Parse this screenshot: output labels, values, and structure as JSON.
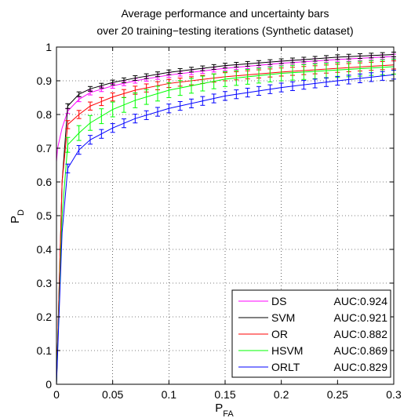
{
  "chart_data": {
    "type": "line",
    "title": "Average performance and uncertainty bars",
    "subtitle": "over 20 training−testing iterations (Synthetic dataset)",
    "xlabel_main": "P",
    "xlabel_sub": "FA",
    "ylabel_main": "P",
    "ylabel_sub": "D",
    "xlim": [
      0,
      0.3
    ],
    "ylim": [
      0,
      1
    ],
    "xticks": [
      0,
      0.05,
      0.1,
      0.15,
      0.2,
      0.25,
      0.3
    ],
    "xtick_labels": [
      "0",
      "0.05",
      "0.1",
      "0.15",
      "0.2",
      "0.25",
      "0.3"
    ],
    "yticks": [
      0,
      0.1,
      0.2,
      0.3,
      0.4,
      0.5,
      0.6,
      0.7,
      0.8,
      0.9,
      1
    ],
    "ytick_labels": [
      "0",
      "0.1",
      "0.2",
      "0.3",
      "0.4",
      "0.5",
      "0.6",
      "0.7",
      "0.8",
      "0.9",
      "1"
    ],
    "grid": "dotted",
    "legend_position": "bottom-right",
    "error_bar_x": [
      0.01,
      0.02,
      0.03,
      0.04,
      0.05,
      0.06,
      0.07,
      0.08,
      0.09,
      0.1,
      0.11,
      0.12,
      0.13,
      0.14,
      0.15,
      0.16,
      0.17,
      0.18,
      0.19,
      0.2,
      0.21,
      0.22,
      0.23,
      0.24,
      0.25,
      0.26,
      0.27,
      0.28,
      0.29,
      0.3
    ],
    "series": [
      {
        "name": "DS",
        "auc": "AUC:0.924",
        "color": "#ff00ff",
        "x": [
          0,
          0.001,
          0.005,
          0.01,
          0.02,
          0.03,
          0.05,
          0.07,
          0.1,
          0.15,
          0.2,
          0.25,
          0.3
        ],
        "y": [
          0.66,
          0.7,
          0.76,
          0.81,
          0.845,
          0.865,
          0.885,
          0.9,
          0.917,
          0.937,
          0.952,
          0.963,
          0.972
        ],
        "err": 0.007
      },
      {
        "name": "SVM",
        "auc": "AUC:0.921",
        "color": "#000000",
        "x": [
          0,
          0.005,
          0.01,
          0.02,
          0.03,
          0.05,
          0.07,
          0.1,
          0.15,
          0.2,
          0.25,
          0.3
        ],
        "y": [
          0.0,
          0.6,
          0.825,
          0.86,
          0.876,
          0.895,
          0.908,
          0.925,
          0.945,
          0.958,
          0.97,
          0.978
        ],
        "err": 0.007
      },
      {
        "name": "OR",
        "auc": "AUC:0.882",
        "color": "#ff0000",
        "x": [
          0,
          0.005,
          0.01,
          0.02,
          0.03,
          0.05,
          0.07,
          0.1,
          0.15,
          0.2,
          0.25,
          0.3
        ],
        "y": [
          0.0,
          0.6,
          0.77,
          0.8,
          0.825,
          0.852,
          0.872,
          0.892,
          0.912,
          0.926,
          0.937,
          0.947
        ],
        "err": 0.012
      },
      {
        "name": "HSVM",
        "auc": "AUC:0.869",
        "color": "#00ff00",
        "x": [
          0,
          0.005,
          0.01,
          0.02,
          0.03,
          0.05,
          0.07,
          0.1,
          0.15,
          0.2,
          0.25,
          0.3
        ],
        "y": [
          0.0,
          0.5,
          0.71,
          0.745,
          0.775,
          0.815,
          0.842,
          0.872,
          0.905,
          0.922,
          0.932,
          0.942
        ],
        "err": 0.022
      },
      {
        "name": "ORLT",
        "auc": "AUC:0.829",
        "color": "#0000ff",
        "x": [
          0,
          0.005,
          0.01,
          0.02,
          0.03,
          0.05,
          0.07,
          0.1,
          0.15,
          0.2,
          0.25,
          0.3
        ],
        "y": [
          0.0,
          0.45,
          0.64,
          0.695,
          0.725,
          0.76,
          0.788,
          0.818,
          0.855,
          0.88,
          0.9,
          0.918
        ],
        "err": 0.013
      }
    ]
  }
}
